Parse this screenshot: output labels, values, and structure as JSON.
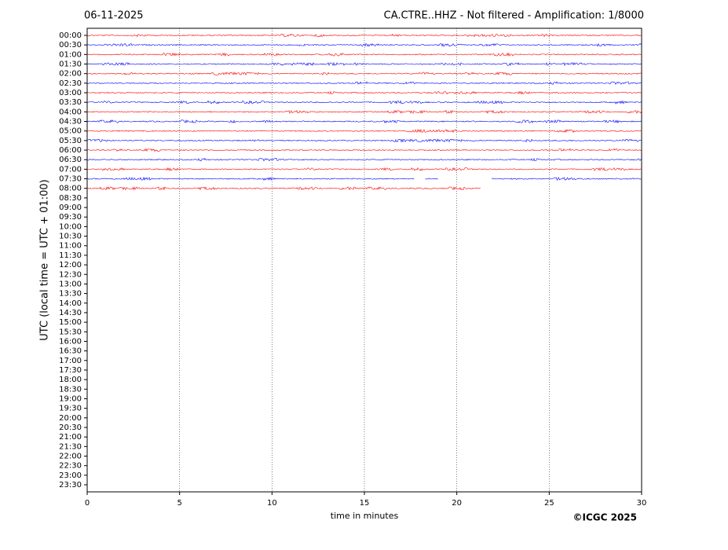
{
  "chart_data": {
    "type": "helicorder",
    "title": "06-11-2025",
    "subtitle": "CA.CTRE..HHZ - Not filtered - Amplification: 1/8000",
    "ylabel": "UTC (local time = UTC + 01:00)",
    "xlabel": "time in minutes",
    "credit": "©ICGC 2025",
    "categories": [
      "00:00",
      "00:30",
      "01:00",
      "01:30",
      "02:00",
      "02:30",
      "03:00",
      "03:30",
      "04:00",
      "04:30",
      "05:00",
      "05:30",
      "06:00",
      "06:30",
      "07:00",
      "07:30",
      "08:00",
      "08:30",
      "09:00",
      "09:30",
      "10:00",
      "10:30",
      "11:00",
      "11:30",
      "12:00",
      "12:30",
      "13:00",
      "13:30",
      "14:00",
      "14:30",
      "15:00",
      "15:30",
      "16:00",
      "16:30",
      "17:00",
      "17:30",
      "18:00",
      "18:30",
      "19:00",
      "19:30",
      "20:00",
      "20:30",
      "21:00",
      "21:30",
      "22:00",
      "22:30",
      "23:00",
      "23:30"
    ],
    "xlim": [
      0,
      30
    ],
    "xticks": [
      0,
      5,
      10,
      15,
      20,
      25,
      30
    ],
    "grid": true,
    "traces": [
      {
        "color": "#ff0000",
        "segments": [
          [
            0,
            30
          ]
        ]
      },
      {
        "color": "#0000ff",
        "segments": [
          [
            0,
            30
          ]
        ]
      },
      {
        "color": "#ff0000",
        "segments": [
          [
            0,
            30
          ]
        ]
      },
      {
        "color": "#0000ff",
        "segments": [
          [
            0,
            30
          ]
        ]
      },
      {
        "color": "#ff0000",
        "segments": [
          [
            0,
            30
          ]
        ]
      },
      {
        "color": "#0000ff",
        "segments": [
          [
            0,
            30
          ]
        ]
      },
      {
        "color": "#ff0000",
        "segments": [
          [
            0,
            30
          ]
        ]
      },
      {
        "color": "#0000ff",
        "segments": [
          [
            0,
            30
          ]
        ]
      },
      {
        "color": "#ff0000",
        "segments": [
          [
            0,
            30
          ]
        ]
      },
      {
        "color": "#0000ff",
        "segments": [
          [
            0,
            30
          ]
        ]
      },
      {
        "color": "#ff0000",
        "segments": [
          [
            0,
            30
          ]
        ]
      },
      {
        "color": "#0000ff",
        "segments": [
          [
            0,
            30
          ]
        ]
      },
      {
        "color": "#ff0000",
        "segments": [
          [
            0,
            30
          ]
        ]
      },
      {
        "color": "#0000ff",
        "segments": [
          [
            0,
            30
          ]
        ]
      },
      {
        "color": "#ff0000",
        "segments": [
          [
            0,
            30
          ]
        ]
      },
      {
        "color": "#0000ff",
        "segments": [
          [
            0,
            17.7
          ],
          [
            18.3,
            19.0
          ],
          [
            21.9,
            30
          ]
        ]
      },
      {
        "color": "#ff0000",
        "segments": [
          [
            0,
            21.3
          ]
        ]
      }
    ]
  }
}
